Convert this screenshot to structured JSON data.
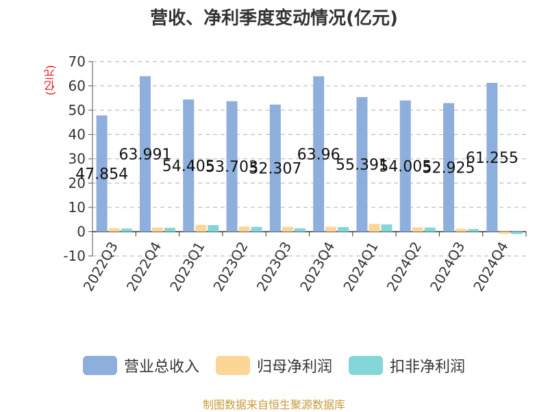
{
  "chart_data": {
    "type": "bar",
    "title": "营收、净利季度变动情况(亿元)",
    "ylabel": "(亿元)",
    "ylim": [
      -10,
      70
    ],
    "yticks": [
      -10,
      0,
      10,
      20,
      30,
      40,
      50,
      60,
      70
    ],
    "grid": true,
    "legend_position": "bottom",
    "categories": [
      "2022Q3",
      "2022Q4",
      "2023Q1",
      "2023Q2",
      "2023Q3",
      "2023Q4",
      "2024Q1",
      "2024Q2",
      "2024Q3",
      "2024Q4"
    ],
    "series": [
      {
        "name": "营业总收入",
        "color": "#8eaedb",
        "values": [
          47.854,
          63.991,
          54.405,
          53.703,
          52.307,
          63.96,
          55.391,
          54.005,
          52.925,
          61.255
        ],
        "labels": [
          "47.854",
          "63.991",
          "54.405",
          "53.703",
          "52.307",
          "63.96",
          "55.391",
          "54.005",
          "52.925",
          "61.255"
        ]
      },
      {
        "name": "归母净利润",
        "color": "#fcd697",
        "values": [
          1.4,
          1.7,
          2.8,
          2.1,
          2.0,
          2.0,
          3.2,
          1.8,
          1.2,
          -0.9
        ]
      },
      {
        "name": "扣非净利润",
        "color": "#85d6d8",
        "values": [
          1.3,
          1.6,
          2.7,
          2.0,
          1.4,
          1.9,
          3.0,
          1.7,
          1.1,
          -1.0
        ]
      }
    ]
  },
  "source": "制图数据来自恒生聚源数据库"
}
